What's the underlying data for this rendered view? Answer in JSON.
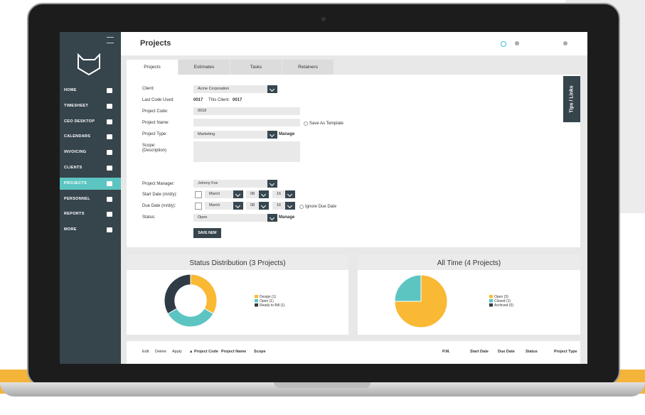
{
  "header": {
    "title": "Projects"
  },
  "sidebar": {
    "items": [
      "HOME",
      "TIMESHEET",
      "CEO DESKTOP",
      "CALENDARS",
      "INVOICING",
      "CLIENTS",
      "PROJECTS",
      "PERSONNEL",
      "REPORTS",
      "MORE"
    ],
    "active": 6
  },
  "tabs": [
    "Projects",
    "Estimates",
    "Tasks",
    "Retainers"
  ],
  "side_tab": "Tips / Links",
  "form": {
    "client_label": "Client:",
    "client": "Acme Corporation",
    "last_code_label": "Last Code Used:",
    "last_code": "0017",
    "this_client_label": "This Client:",
    "this_client": "0017",
    "project_code_label": "Project Code:",
    "project_code": "0018",
    "project_name_label": "Project Name:",
    "save_template": "Save As Template",
    "project_type_label": "Project Type:",
    "project_type": "Marketing",
    "manage": "Manage",
    "scope_label": "Scope:",
    "scope_sub": "(Description)",
    "manager_label": "Project Manager:",
    "manager": "Johnny Fox",
    "start_label": "Start Date (m/d/y):",
    "start": [
      "March",
      "08",
      "16"
    ],
    "due_label": "Due Date (m/d/y):",
    "due": [
      "March",
      "08",
      "16"
    ],
    "ignore_due": "Ignore Due Date",
    "status_label": "Status:",
    "status": "Open",
    "save": "SAVE NEW"
  },
  "chart_data": [
    {
      "type": "pie",
      "donut": true,
      "title": "Status Distribution (3 Projects)",
      "categories": [
        "Design (1)",
        "Open (1)",
        "Ready to Bill (1)"
      ],
      "values": [
        1,
        1,
        1
      ],
      "colors": [
        "#f9b934",
        "#5cc5c2",
        "#2f3b45"
      ]
    },
    {
      "type": "pie",
      "donut": false,
      "title": "All Time (4 Projects)",
      "categories": [
        "Open (3)",
        "Closed (1)",
        "Archived (0)"
      ],
      "values": [
        3,
        1,
        0
      ],
      "colors": [
        "#f9b934",
        "#5cc5c2",
        "#2f3b45"
      ]
    }
  ],
  "table": {
    "headers": [
      "Edit",
      "Delete",
      "Apply",
      "▲ Project Code",
      "Project Name",
      "Scope",
      "P.M.",
      "Start Date",
      "Due Date",
      "Status",
      "Project Type"
    ]
  }
}
